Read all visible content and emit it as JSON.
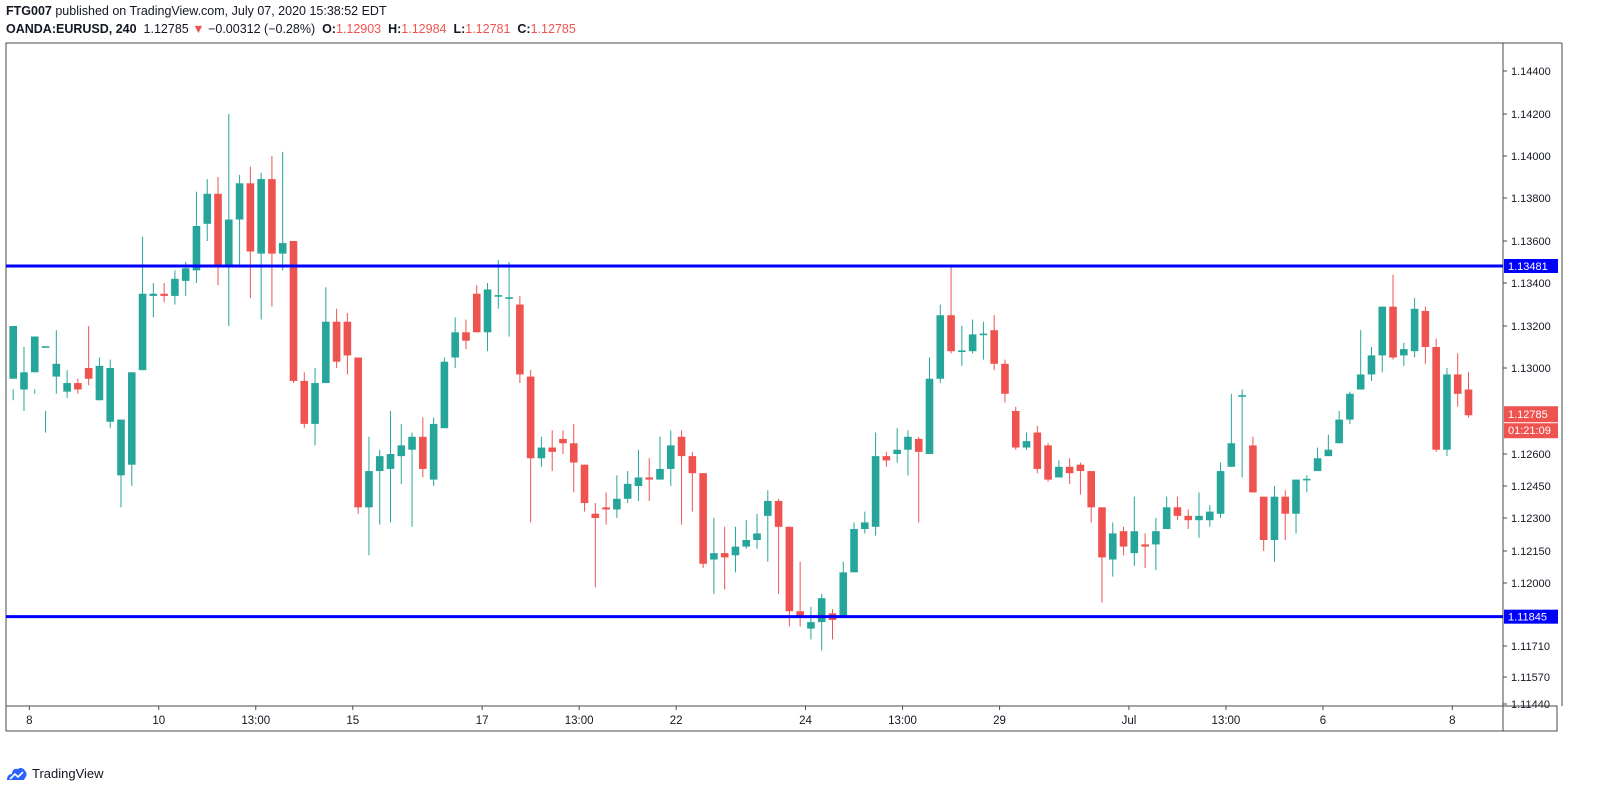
{
  "header": {
    "author": "FTG007",
    "published": "published on TradingView.com, July 07, 2020 15:38:52 EDT",
    "symbol": "OANDA:EURUSD, 240",
    "last": "1.12785",
    "change": "−0.00312 (−0.28%)",
    "o_label": "O:",
    "o": "1.12903",
    "h_label": "H:",
    "h": "1.12984",
    "l_label": "L:",
    "l": "1.12781",
    "c_label": "C:",
    "c": "1.12785"
  },
  "footer": {
    "brand": "TradingView"
  },
  "colors": {
    "up": "#26a69a",
    "down": "#ef5350",
    "level": "#0000ff",
    "axis": "#131722",
    "grid_border": "#4a4a4a"
  },
  "chart_data": {
    "type": "candlestick",
    "ylim": [
      1.1144,
      1.1454
    ],
    "y_ticks": [
      "1.14400",
      "1.14200",
      "1.14000",
      "1.13800",
      "1.13600",
      "1.13400",
      "1.13200",
      "1.13000",
      "1.12600",
      "1.12450",
      "1.12300",
      "1.12150",
      "1.12000",
      "1.11710",
      "1.11570",
      "1.11440"
    ],
    "x_ticks": [
      {
        "label": "8",
        "i": 1.5
      },
      {
        "label": "10",
        "i": 13.5
      },
      {
        "label": "13:00",
        "i": 22.5
      },
      {
        "label": "15",
        "i": 31.5
      },
      {
        "label": "17",
        "i": 43.5
      },
      {
        "label": "13:00",
        "i": 52.5
      },
      {
        "label": "22",
        "i": 61.5
      },
      {
        "label": "24",
        "i": 73.5
      },
      {
        "label": "13:00",
        "i": 82.5
      },
      {
        "label": "29",
        "i": 91.5
      },
      {
        "label": "Jul",
        "i": 103.5
      },
      {
        "label": "13:00",
        "i": 112.5
      },
      {
        "label": "6",
        "i": 121.5
      },
      {
        "label": "8",
        "i": 133.5
      }
    ],
    "levels": [
      {
        "value": 1.13481,
        "label": "1.13481"
      },
      {
        "value": 1.11845,
        "label": "1.11845"
      }
    ],
    "last_price": {
      "value": 1.12785,
      "label": "1.12785",
      "countdown": "01:21:09"
    },
    "ohlc": [
      [
        1.1295,
        1.132,
        1.129,
        1.1285
      ],
      [
        1.129,
        1.1298,
        1.131,
        1.128
      ],
      [
        1.1298,
        1.1315,
        1.129,
        1.1288
      ],
      [
        1.131,
        1.131,
        1.128,
        1.127
      ],
      [
        1.1296,
        1.1302,
        1.1318,
        1.1288
      ],
      [
        1.1289,
        1.1293,
        1.1299,
        1.1286
      ],
      [
        1.1293,
        1.129,
        1.1295,
        1.1288
      ],
      [
        1.13,
        1.1295,
        1.132,
        1.1292
      ],
      [
        1.1285,
        1.1301,
        1.1305,
        1.1285
      ],
      [
        1.1275,
        1.13,
        1.1304,
        1.1272
      ],
      [
        1.125,
        1.1276,
        1.1276,
        1.1235
      ],
      [
        1.1255,
        1.1298,
        1.1298,
        1.1245
      ],
      [
        1.1299,
        1.1335,
        1.1362,
        1.1299
      ],
      [
        1.1334,
        1.1335,
        1.134,
        1.1324
      ],
      [
        1.1335,
        1.1334,
        1.134,
        1.1331
      ],
      [
        1.1334,
        1.1342,
        1.1346,
        1.133
      ],
      [
        1.1341,
        1.1347,
        1.135,
        1.1334
      ],
      [
        1.1346,
        1.1367,
        1.1383,
        1.134
      ],
      [
        1.1368,
        1.1382,
        1.1389,
        1.136
      ],
      [
        1.1382,
        1.1348,
        1.139,
        1.1339
      ],
      [
        1.1348,
        1.137,
        1.142,
        1.132
      ],
      [
        1.137,
        1.1387,
        1.1391,
        1.1348
      ],
      [
        1.1387,
        1.1355,
        1.1395,
        1.1333
      ],
      [
        1.1354,
        1.1389,
        1.1392,
        1.1323
      ],
      [
        1.1389,
        1.1354,
        1.14,
        1.1329
      ],
      [
        1.1354,
        1.1359,
        1.1402,
        1.1346
      ],
      [
        1.136,
        1.1294,
        1.136,
        1.1293
      ],
      [
        1.1294,
        1.1274,
        1.1298,
        1.1272
      ],
      [
        1.1274,
        1.1293,
        1.13,
        1.1264
      ],
      [
        1.1293,
        1.1322,
        1.1338,
        1.1293
      ],
      [
        1.1322,
        1.1303,
        1.1328,
        1.13
      ],
      [
        1.1322,
        1.1306,
        1.1326,
        1.1297
      ],
      [
        1.1305,
        1.1235,
        1.1305,
        1.1232
      ],
      [
        1.1235,
        1.1252,
        1.1268,
        1.1213
      ],
      [
        1.1252,
        1.1259,
        1.1262,
        1.1227
      ],
      [
        1.1253,
        1.126,
        1.128,
        1.1228
      ],
      [
        1.1259,
        1.1264,
        1.1274,
        1.1246
      ],
      [
        1.1262,
        1.1268,
        1.127,
        1.1226
      ],
      [
        1.1268,
        1.1253,
        1.1277,
        1.1249
      ],
      [
        1.1248,
        1.1274,
        1.1277,
        1.1245
      ],
      [
        1.1272,
        1.1303,
        1.1305,
        1.1272
      ],
      [
        1.1305,
        1.1317,
        1.1324,
        1.13
      ],
      [
        1.1317,
        1.1313,
        1.1323,
        1.1309
      ],
      [
        1.1335,
        1.1317,
        1.1339,
        1.1319
      ],
      [
        1.1317,
        1.1337,
        1.134,
        1.1308
      ],
      [
        1.1334,
        1.1334,
        1.1351,
        1.1328
      ],
      [
        1.1333,
        1.1333,
        1.135,
        1.1315
      ],
      [
        1.133,
        1.1297,
        1.1334,
        1.1293
      ],
      [
        1.1296,
        1.1258,
        1.1299,
        1.1228
      ],
      [
        1.1258,
        1.1263,
        1.1268,
        1.1254
      ],
      [
        1.1263,
        1.1261,
        1.1271,
        1.1252
      ],
      [
        1.1267,
        1.1265,
        1.1271,
        1.126
      ],
      [
        1.1265,
        1.1256,
        1.1274,
        1.1242
      ],
      [
        1.1255,
        1.1237,
        1.1255,
        1.1233
      ],
      [
        1.1232,
        1.123,
        1.1237,
        1.1198
      ],
      [
        1.1235,
        1.1234,
        1.1242,
        1.1227
      ],
      [
        1.1234,
        1.1239,
        1.125,
        1.123
      ],
      [
        1.1239,
        1.1246,
        1.1252,
        1.1237
      ],
      [
        1.1245,
        1.1249,
        1.1262,
        1.1238
      ],
      [
        1.1249,
        1.1248,
        1.1258,
        1.1238
      ],
      [
        1.1248,
        1.1253,
        1.1268,
        1.1249
      ],
      [
        1.1253,
        1.1264,
        1.1271,
        1.1245
      ],
      [
        1.1268,
        1.1259,
        1.1271,
        1.1227
      ],
      [
        1.1259,
        1.1251,
        1.1261,
        1.1233
      ],
      [
        1.1251,
        1.1209,
        1.1251,
        1.1207
      ],
      [
        1.1211,
        1.1214,
        1.123,
        1.1195
      ],
      [
        1.1214,
        1.1212,
        1.1226,
        1.1197
      ],
      [
        1.1213,
        1.1217,
        1.1226,
        1.1205
      ],
      [
        1.1217,
        1.122,
        1.1229,
        1.1216
      ],
      [
        1.122,
        1.1223,
        1.1232,
        1.1216
      ],
      [
        1.1231,
        1.1238,
        1.1243,
        1.121
      ],
      [
        1.1238,
        1.1226,
        1.1239,
        1.1195
      ],
      [
        1.1226,
        1.1187,
        1.1226,
        1.118
      ],
      [
        1.1187,
        1.1185,
        1.121,
        1.118
      ],
      [
        1.1179,
        1.1182,
        1.1189,
        1.1174
      ],
      [
        1.1182,
        1.1193,
        1.1195,
        1.1169
      ],
      [
        1.1186,
        1.1183,
        1.1188,
        1.1174
      ],
      [
        1.1185,
        1.1205,
        1.121,
        1.1185
      ],
      [
        1.1205,
        1.1225,
        1.1228,
        1.1205
      ],
      [
        1.1225,
        1.1228,
        1.1233,
        1.1223
      ],
      [
        1.1226,
        1.1259,
        1.127,
        1.1222
      ],
      [
        1.1259,
        1.1257,
        1.1261,
        1.1254
      ],
      [
        1.126,
        1.1262,
        1.1272,
        1.1256
      ],
      [
        1.1262,
        1.1268,
        1.1271,
        1.125
      ],
      [
        1.1267,
        1.1261,
        1.1268,
        1.1228
      ],
      [
        1.126,
        1.1295,
        1.1305,
        1.126
      ],
      [
        1.1295,
        1.1325,
        1.133,
        1.1293
      ],
      [
        1.1325,
        1.1308,
        1.1348,
        1.1307
      ],
      [
        1.1308,
        1.1308,
        1.132,
        1.1301
      ],
      [
        1.1308,
        1.1316,
        1.1323,
        1.1307
      ],
      [
        1.1316,
        1.1316,
        1.1322,
        1.1304
      ],
      [
        1.1318,
        1.1302,
        1.1325,
        1.1299
      ],
      [
        1.1302,
        1.1288,
        1.1304,
        1.1284
      ],
      [
        1.128,
        1.1263,
        1.1282,
        1.1262
      ],
      [
        1.1263,
        1.1266,
        1.127,
        1.1262
      ],
      [
        1.127,
        1.1253,
        1.1273,
        1.1251
      ],
      [
        1.1264,
        1.1248,
        1.1265,
        1.1247
      ],
      [
        1.1249,
        1.1254,
        1.1257,
        1.1249
      ],
      [
        1.1254,
        1.1251,
        1.1258,
        1.1246
      ],
      [
        1.1255,
        1.1252,
        1.1256,
        1.1241
      ],
      [
        1.1252,
        1.1235,
        1.1252,
        1.1228
      ],
      [
        1.1235,
        1.1212,
        1.1235,
        1.1191
      ],
      [
        1.1211,
        1.1223,
        1.1228,
        1.1203
      ],
      [
        1.1224,
        1.1217,
        1.1226,
        1.1213
      ],
      [
        1.1214,
        1.1224,
        1.124,
        1.1208
      ],
      [
        1.1218,
        1.1217,
        1.1223,
        1.1207
      ],
      [
        1.1218,
        1.1224,
        1.123,
        1.1206
      ],
      [
        1.1225,
        1.1235,
        1.124,
        1.1225
      ],
      [
        1.1235,
        1.1231,
        1.124,
        1.1229
      ],
      [
        1.1231,
        1.1229,
        1.1234,
        1.1225
      ],
      [
        1.1229,
        1.1231,
        1.1242,
        1.1221
      ],
      [
        1.1229,
        1.1233,
        1.1236,
        1.1226
      ],
      [
        1.1232,
        1.1252,
        1.1256,
        1.123
      ],
      [
        1.1254,
        1.1265,
        1.1288,
        1.1254
      ],
      [
        1.1287,
        1.1287,
        1.129,
        1.1249
      ],
      [
        1.1264,
        1.1242,
        1.1268,
        1.1242
      ],
      [
        1.124,
        1.122,
        1.124,
        1.1215
      ],
      [
        1.122,
        1.124,
        1.1245,
        1.121
      ],
      [
        1.124,
        1.1232,
        1.1243,
        1.122
      ],
      [
        1.1232,
        1.1248,
        1.1248,
        1.1223
      ],
      [
        1.1248,
        1.1248,
        1.125,
        1.1242
      ],
      [
        1.1252,
        1.1258,
        1.1263,
        1.1252
      ],
      [
        1.1259,
        1.1262,
        1.1269,
        1.1259
      ],
      [
        1.1265,
        1.1276,
        1.128,
        1.1265
      ],
      [
        1.1276,
        1.1288,
        1.1289,
        1.1274
      ],
      [
        1.129,
        1.1297,
        1.1318,
        1.129
      ],
      [
        1.1297,
        1.1306,
        1.131,
        1.1294
      ],
      [
        1.1306,
        1.1329,
        1.1329,
        1.1298
      ],
      [
        1.1329,
        1.1305,
        1.1344,
        1.1304
      ],
      [
        1.1306,
        1.1309,
        1.1312,
        1.1301
      ],
      [
        1.1308,
        1.1328,
        1.1333,
        1.1305
      ],
      [
        1.1327,
        1.131,
        1.1329,
        1.1302
      ],
      [
        1.131,
        1.1262,
        1.1314,
        1.1261
      ],
      [
        1.1262,
        1.1297,
        1.13,
        1.1259
      ],
      [
        1.1297,
        1.1288,
        1.1307,
        1.1282
      ],
      [
        1.129,
        1.1278,
        1.1298,
        1.1277
      ]
    ]
  }
}
